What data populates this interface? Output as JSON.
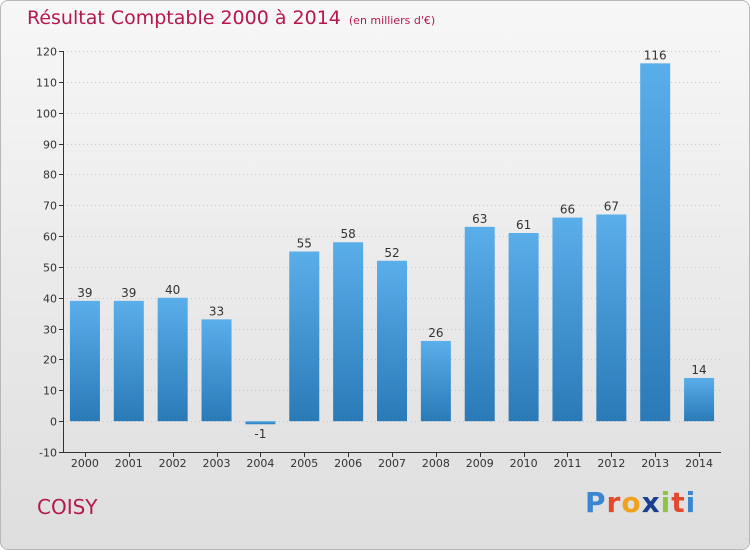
{
  "header": {
    "title": "Résultat Comptable 2000 à 2014",
    "subtitle": "(en milliers d'€)"
  },
  "footer": {
    "commune": "COISY",
    "logo": "Proxiti"
  },
  "colors": {
    "title": "#b5174f",
    "bar_light": "#5aaeea",
    "bar_dark": "#2a7ab8"
  },
  "chart_data": {
    "type": "bar",
    "title": "Résultat Comptable 2000 à 2014",
    "subtitle": "(en milliers d'€)",
    "xlabel": "",
    "ylabel": "",
    "categories": [
      "2000",
      "2001",
      "2002",
      "2003",
      "2004",
      "2005",
      "2006",
      "2007",
      "2008",
      "2009",
      "2010",
      "2011",
      "2012",
      "2013",
      "2014"
    ],
    "values": [
      39,
      39,
      40,
      33,
      -1,
      55,
      58,
      52,
      26,
      63,
      61,
      66,
      67,
      116,
      14
    ],
    "ylim": [
      -10,
      120
    ],
    "yticks": [
      -10,
      0,
      10,
      20,
      30,
      40,
      50,
      60,
      70,
      80,
      90,
      100,
      110,
      120
    ],
    "grid": true
  }
}
